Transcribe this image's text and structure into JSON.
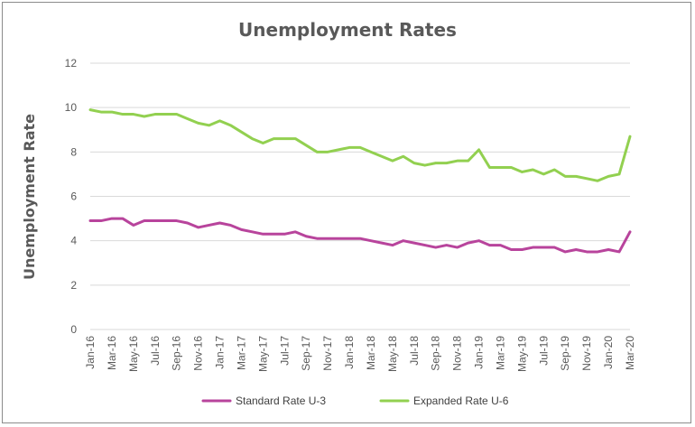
{
  "chart_data": {
    "type": "line",
    "title": "Unemployment Rates",
    "ylabel": "Unemployment Rate",
    "xlabel": "",
    "ylim": [
      0,
      12
    ],
    "yticks": [
      "0",
      "2",
      "4",
      "6",
      "8",
      "10",
      "12"
    ],
    "grid": "horizontal",
    "legend_position": "bottom",
    "x": [
      "Jan-16",
      "Feb-16",
      "Mar-16",
      "Apr-16",
      "May-16",
      "Jun-16",
      "Jul-16",
      "Aug-16",
      "Sep-16",
      "Oct-16",
      "Nov-16",
      "Dec-16",
      "Jan-17",
      "Feb-17",
      "Mar-17",
      "Apr-17",
      "May-17",
      "Jun-17",
      "Jul-17",
      "Aug-17",
      "Sep-17",
      "Oct-17",
      "Nov-17",
      "Dec-17",
      "Jan-18",
      "Feb-18",
      "Mar-18",
      "Apr-18",
      "May-18",
      "Jun-18",
      "Jul-18",
      "Aug-18",
      "Sep-18",
      "Oct-18",
      "Nov-18",
      "Dec-18",
      "Jan-19",
      "Feb-19",
      "Mar-19",
      "Apr-19",
      "May-19",
      "Jun-19",
      "Jul-19",
      "Aug-19",
      "Sep-19",
      "Oct-19",
      "Nov-19",
      "Dec-19",
      "Jan-20",
      "Feb-20",
      "Mar-20"
    ],
    "xtick_labels": [
      "Jan-16",
      "Mar-16",
      "May-16",
      "Jul-16",
      "Sep-16",
      "Nov-16",
      "Jan-17",
      "Mar-17",
      "May-17",
      "Jul-17",
      "Sep-17",
      "Nov-17",
      "Jan-18",
      "Mar-18",
      "May-18",
      "Jul-18",
      "Sep-18",
      "Nov-18",
      "Jan-19",
      "Mar-19",
      "May-19",
      "Jul-19",
      "Sep-19",
      "Nov-19",
      "Jan-20",
      "Mar-20"
    ],
    "series": [
      {
        "name": "Standard Rate U-3",
        "color": "#b8449c",
        "values": [
          4.9,
          4.9,
          5.0,
          5.0,
          4.7,
          4.9,
          4.9,
          4.9,
          4.9,
          4.8,
          4.6,
          4.7,
          4.8,
          4.7,
          4.5,
          4.4,
          4.3,
          4.3,
          4.3,
          4.4,
          4.2,
          4.1,
          4.1,
          4.1,
          4.1,
          4.1,
          4.0,
          3.9,
          3.8,
          4.0,
          3.9,
          3.8,
          3.7,
          3.8,
          3.7,
          3.9,
          4.0,
          3.8,
          3.8,
          3.6,
          3.6,
          3.7,
          3.7,
          3.7,
          3.5,
          3.6,
          3.5,
          3.5,
          3.6,
          3.5,
          4.4
        ]
      },
      {
        "name": "Expanded Rate U-6",
        "color": "#92d050",
        "values": [
          9.9,
          9.8,
          9.8,
          9.7,
          9.7,
          9.6,
          9.7,
          9.7,
          9.7,
          9.5,
          9.3,
          9.2,
          9.4,
          9.2,
          8.9,
          8.6,
          8.4,
          8.6,
          8.6,
          8.6,
          8.3,
          8.0,
          8.0,
          8.1,
          8.2,
          8.2,
          8.0,
          7.8,
          7.6,
          7.8,
          7.5,
          7.4,
          7.5,
          7.5,
          7.6,
          7.6,
          8.1,
          7.3,
          7.3,
          7.3,
          7.1,
          7.2,
          7.0,
          7.2,
          6.9,
          6.9,
          6.8,
          6.7,
          6.9,
          7.0,
          8.7
        ]
      }
    ]
  },
  "colors": {
    "axis_text": "#595959",
    "gridline": "#d9d9d9",
    "frame_border": "#8c8c8c"
  }
}
